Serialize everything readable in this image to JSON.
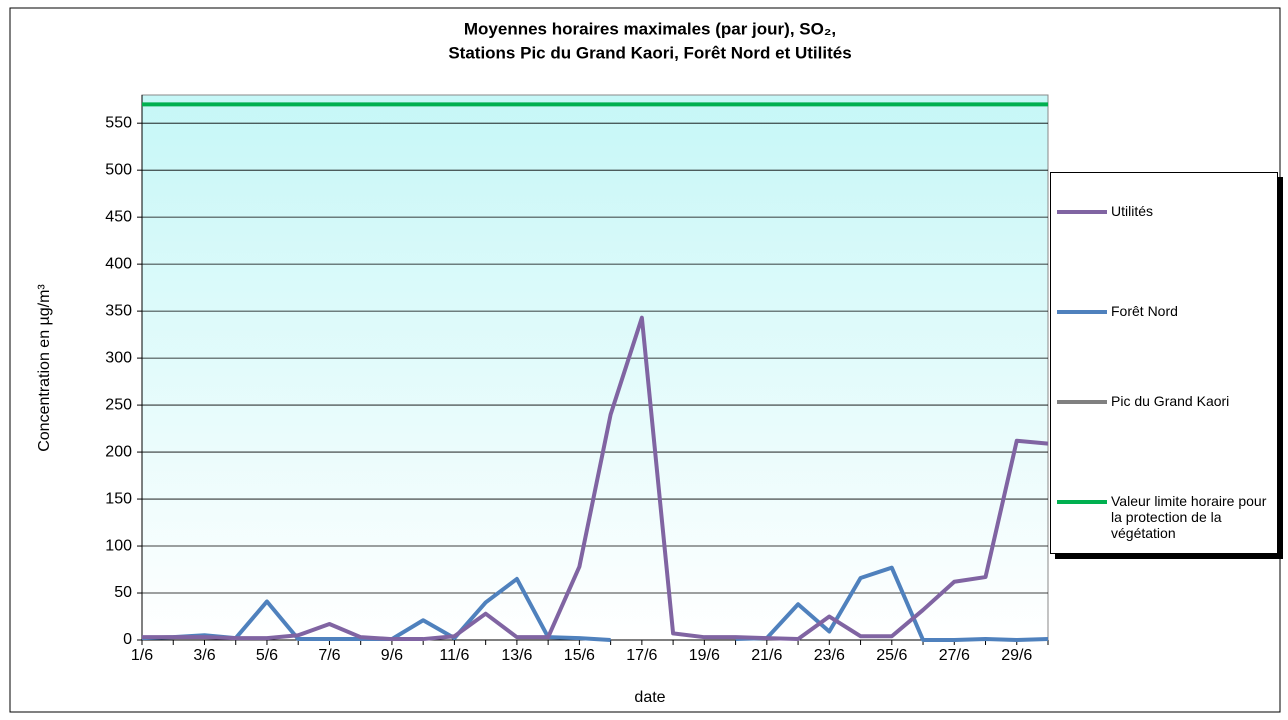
{
  "chart_data": {
    "type": "line",
    "title": [
      "Moyennes horaires maximales (par jour), SO₂,",
      "Stations Pic du Grand Kaori, Forêt Nord et Utilités"
    ],
    "x_label": "date",
    "y_label": "Concentration en µg/m³",
    "categories": [
      "1/6",
      null,
      "3/6",
      null,
      "5/6",
      null,
      "7/6",
      null,
      "9/6",
      null,
      "11/6",
      null,
      "13/6",
      null,
      "15/6",
      null,
      "17/6",
      null,
      "19/6",
      null,
      "21/6",
      null,
      "23/6",
      null,
      "25/6",
      null,
      "27/6",
      null,
      "29/6",
      null
    ],
    "ylim": [
      0,
      580
    ],
    "yticks": [
      0,
      50,
      100,
      150,
      200,
      250,
      300,
      350,
      400,
      450,
      500,
      550
    ],
    "grid": true,
    "series": [
      {
        "name": "Utilités",
        "color": "#8064a2",
        "values": [
          3,
          3,
          3,
          2,
          2,
          5,
          17,
          3,
          1,
          1,
          4,
          28,
          3,
          3,
          78,
          240,
          343,
          7,
          3,
          3,
          2,
          1,
          25,
          4,
          4,
          32,
          62,
          67,
          212,
          209
        ]
      },
      {
        "name": "Forêt Nord",
        "color": "#4f81bd",
        "values": [
          2,
          3,
          5,
          2,
          41,
          1,
          1,
          1,
          1,
          21,
          2,
          40,
          65,
          3,
          2,
          0,
          null,
          null,
          null,
          1,
          2,
          38,
          9,
          66,
          77,
          0,
          0,
          1,
          0,
          1
        ]
      },
      {
        "name": "Pic du Grand Kaori",
        "color": "#808080",
        "values": [
          null,
          null,
          null,
          null,
          null,
          null,
          null,
          null,
          null,
          null,
          null,
          null,
          null,
          null,
          null,
          null,
          null,
          null,
          null,
          null,
          null,
          null,
          null,
          null,
          null,
          null,
          null,
          null,
          null,
          null
        ]
      },
      {
        "name": "Valeur limite horaire pour la protection de la végétation",
        "color": "#00b050",
        "values": [
          570,
          570,
          570,
          570,
          570,
          570,
          570,
          570,
          570,
          570,
          570,
          570,
          570,
          570,
          570,
          570,
          570,
          570,
          570,
          570,
          570,
          570,
          570,
          570,
          570,
          570,
          570,
          570,
          570,
          570
        ]
      }
    ]
  }
}
